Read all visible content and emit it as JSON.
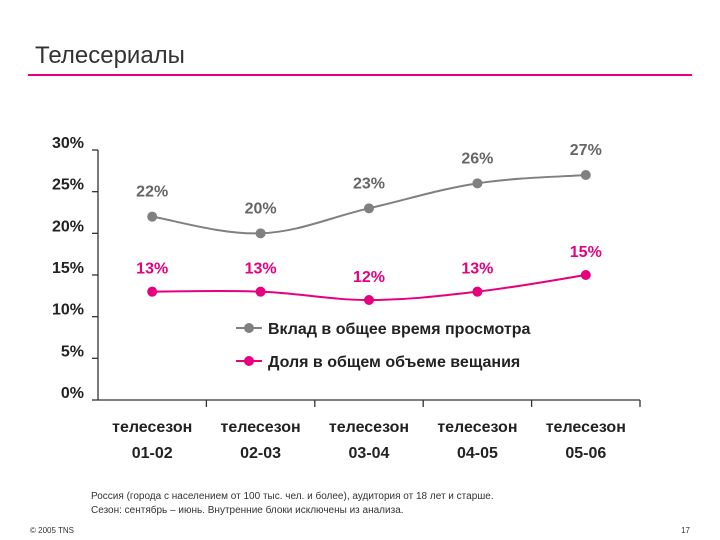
{
  "title": "Телесериалы",
  "footnote": {
    "line1": "Россия (города с населением от 100 тыс. чел. и более), аудитория от 18 лет и старше.",
    "line2": "Сезон: сентябрь – июнь. Внутренние блоки исключены из анализа."
  },
  "copyright": "© 2005 TNS",
  "page_number": "17",
  "chart_data": {
    "type": "line",
    "categories": [
      [
        "телесезон",
        "01-02"
      ],
      [
        "телесезон",
        "02-03"
      ],
      [
        "телесезон",
        "03-04"
      ],
      [
        "телесезон",
        "04-05"
      ],
      [
        "телесезон",
        "05-06"
      ]
    ],
    "y_ticks": [
      "0%",
      "5%",
      "10%",
      "15%",
      "20%",
      "25%",
      "30%"
    ],
    "ylim": [
      0,
      30
    ],
    "grid": false,
    "legend_position": "center-right",
    "series": [
      {
        "name": "Вклад в общее время просмотра",
        "values": [
          22,
          20,
          23,
          26,
          27
        ],
        "labels": [
          "22%",
          "20%",
          "23%",
          "26%",
          "27%"
        ],
        "color": "#808080"
      },
      {
        "name": "Доля в общем объеме вещания",
        "values": [
          13,
          13,
          12,
          13,
          15
        ],
        "labels": [
          "13%",
          "13%",
          "12%",
          "13%",
          "15%"
        ],
        "color": "#e6007e"
      }
    ]
  }
}
